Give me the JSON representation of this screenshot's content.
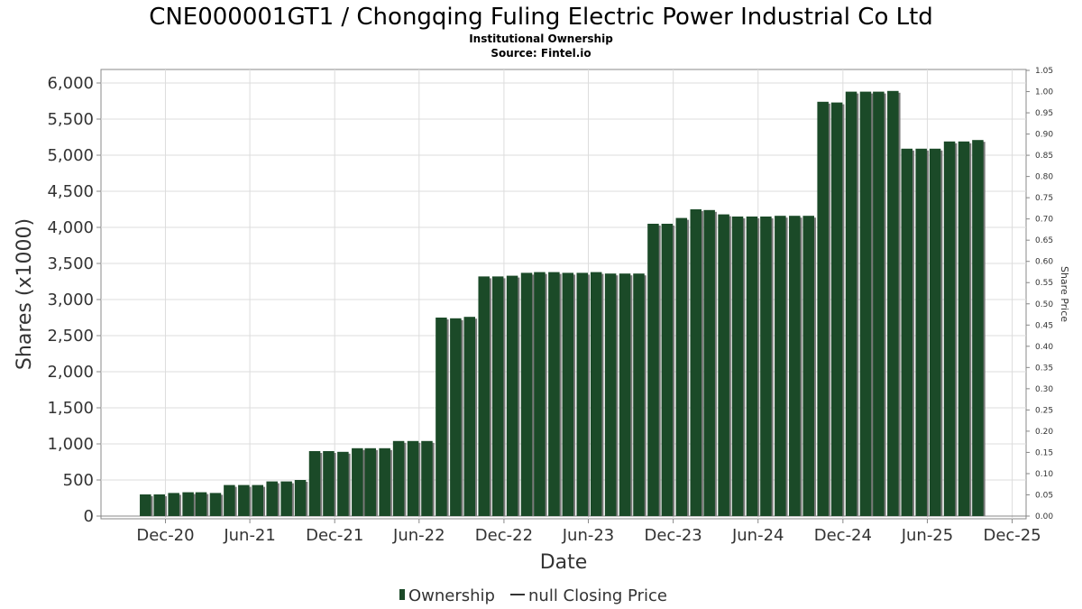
{
  "chart_data": {
    "type": "bar",
    "title": "CNE000001GT1 / Chongqing Fuling Electric Power Industrial Co Ltd",
    "subtitle": "Institutional Ownership",
    "source": "Source: Fintel.io",
    "xlabel": "Date",
    "ylabel": "Shares (x1000)",
    "y2label": "Share Price",
    "ylim": [
      0,
      6200
    ],
    "y2lim": [
      0,
      1.05
    ],
    "grid": true,
    "legend_position": "bottom-center",
    "x_ticks": [
      "Dec-20",
      "Jun-21",
      "Dec-21",
      "Jun-22",
      "Dec-22",
      "Jun-23",
      "Dec-23",
      "Jun-24",
      "Dec-24",
      "Jun-25",
      "Dec-25"
    ],
    "y_ticks": [
      "0",
      "500",
      "1,000",
      "1,500",
      "2,000",
      "2,500",
      "3,000",
      "3,500",
      "4,000",
      "4,500",
      "5,000",
      "5,500",
      "6,000"
    ],
    "y2_ticks": [
      "0.00",
      "0.05",
      "0.10",
      "0.15",
      "0.20",
      "0.25",
      "0.30",
      "0.35",
      "0.40",
      "0.45",
      "0.50",
      "0.55",
      "0.60",
      "0.65",
      "0.70",
      "0.75",
      "0.80",
      "0.85",
      "0.90",
      "0.95",
      "1.00",
      "1.05"
    ],
    "x_range": [
      "2020-07-15",
      "2025-12-31"
    ],
    "series": [
      {
        "name": "Ownership",
        "color": "#1b4a28",
        "x": [
          "2020-10-31",
          "2020-11-30",
          "2020-12-31",
          "2021-01-31",
          "2021-02-28",
          "2021-03-31",
          "2021-04-30",
          "2021-05-31",
          "2021-06-30",
          "2021-07-31",
          "2021-08-31",
          "2021-09-30",
          "2021-10-31",
          "2021-11-30",
          "2021-12-31",
          "2022-01-31",
          "2022-02-28",
          "2022-03-31",
          "2022-04-30",
          "2022-05-31",
          "2022-06-30",
          "2022-07-31",
          "2022-08-31",
          "2022-09-30",
          "2022-10-31",
          "2022-11-30",
          "2022-12-31",
          "2023-01-31",
          "2023-02-28",
          "2023-03-31",
          "2023-04-30",
          "2023-05-31",
          "2023-06-30",
          "2023-07-31",
          "2023-08-31",
          "2023-09-30",
          "2023-10-31",
          "2023-11-30",
          "2023-12-31",
          "2024-01-31",
          "2024-02-29",
          "2024-03-31",
          "2024-04-30",
          "2024-05-31",
          "2024-06-30",
          "2024-07-31",
          "2024-08-31",
          "2024-09-30",
          "2024-10-31",
          "2024-11-30",
          "2024-12-31",
          "2025-01-31",
          "2025-02-28",
          "2025-03-31",
          "2025-04-30",
          "2025-05-31",
          "2025-06-30",
          "2025-07-31",
          "2025-08-31",
          "2025-09-30"
        ],
        "values": [
          300,
          300,
          320,
          330,
          330,
          320,
          430,
          430,
          430,
          480,
          480,
          500,
          900,
          900,
          890,
          940,
          940,
          940,
          1040,
          1040,
          1040,
          2750,
          2740,
          2760,
          3320,
          3320,
          3330,
          3370,
          3380,
          3380,
          3370,
          3370,
          3380,
          3360,
          3360,
          3360,
          4050,
          4050,
          4130,
          4250,
          4240,
          4180,
          4150,
          4150,
          4150,
          4160,
          4160,
          4160,
          5740,
          5730,
          5880,
          5880,
          5880,
          5890,
          5090,
          5090,
          5090,
          5190,
          5190,
          5210
        ]
      },
      {
        "name": "null Closing Price",
        "color": "#333333",
        "values": []
      }
    ]
  }
}
